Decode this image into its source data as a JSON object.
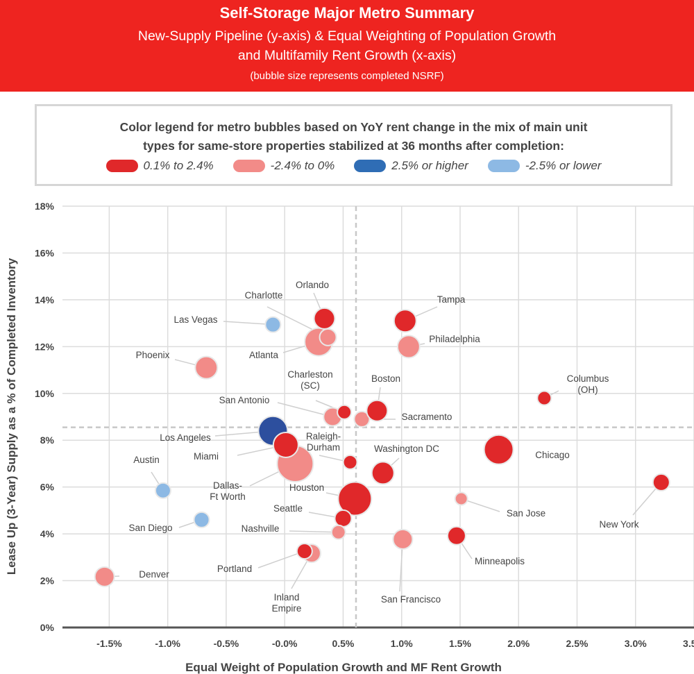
{
  "header": {
    "title": "Self-Storage Major Metro Summary",
    "subtitle_line1": "New-Supply Pipeline (y-axis) & Equal Weighting of Population Growth",
    "subtitle_line2": "and Multifamily Rent Growth (x-axis)",
    "note": "(bubble size represents completed NSRF)"
  },
  "legend": {
    "title_line1": "Color legend for metro bubbles based on YoY rent change in the mix of main unit",
    "title_line2": "types for same-store properties stabilized at 36 months after completion:",
    "items": [
      {
        "label": "0.1% to 2.4%",
        "color": "#e0282a"
      },
      {
        "label": "-2.4% to 0%",
        "color": "#f28b88"
      },
      {
        "label": "2.5% or higher",
        "color": "#2f6db5"
      },
      {
        "label": "-2.5% or lower",
        "color": "#8db9e4"
      }
    ]
  },
  "chart_data": {
    "type": "scatter",
    "xlabel": "Equal Weight of Population Growth and MF Rent Growth",
    "ylabel": "Lease Up (3-Year) Supply as a % of Completed Inventory",
    "xlim": [
      -1.9,
      3.5
    ],
    "ylim": [
      0,
      18
    ],
    "xticks": [
      "-1.5%",
      "-1.0%",
      "-0.5%",
      "-0.0%",
      "0.5%",
      "1.0%",
      "1.5%",
      "2.0%",
      "2.5%",
      "3.0%",
      "3.5%"
    ],
    "xtick_values": [
      -1.5,
      -1.0,
      -0.5,
      0,
      0.5,
      1.0,
      1.5,
      2.0,
      2.5,
      3.0,
      3.5
    ],
    "yticks": [
      "0%",
      "2%",
      "4%",
      "6%",
      "8%",
      "10%",
      "12%",
      "14%",
      "16%",
      "18%"
    ],
    "ytick_values": [
      0,
      2,
      4,
      6,
      8,
      10,
      12,
      14,
      16,
      18
    ],
    "grid": true,
    "reference_lines": {
      "x": 0.61,
      "y": 8.55
    },
    "points": [
      {
        "name": "Las Vegas",
        "x": -0.1,
        "y": 12.94,
        "size": 11,
        "category": "-2.5% or lower"
      },
      {
        "name": "Atlanta",
        "x": 0.29,
        "y": 12.2,
        "size": 20,
        "category": "-2.4% to 0%"
      },
      {
        "name": "Orlando",
        "x": 0.34,
        "y": 13.2,
        "size": 15,
        "category": "0.1% to 2.4%"
      },
      {
        "name": "Charlotte",
        "x": 0.37,
        "y": 12.4,
        "size": 12,
        "category": "-2.4% to 0%"
      },
      {
        "name": "Tampa",
        "x": 1.03,
        "y": 13.1,
        "size": 16,
        "category": "0.1% to 2.4%"
      },
      {
        "name": "Philadelphia",
        "x": 1.06,
        "y": 12.0,
        "size": 16,
        "category": "-2.4% to 0%"
      },
      {
        "name": "Phoenix",
        "x": -0.67,
        "y": 11.1,
        "size": 16,
        "category": "-2.4% to 0%"
      },
      {
        "name": "Columbus (OH)",
        "x": 2.22,
        "y": 9.8,
        "size": 10,
        "category": "0.1% to 2.4%"
      },
      {
        "name": "San Antonio",
        "x": 0.41,
        "y": 9.0,
        "size": 13,
        "category": "-2.4% to 0%"
      },
      {
        "name": "Charleston (SC)",
        "x": 0.51,
        "y": 9.2,
        "size": 10,
        "category": "0.1% to 2.4%"
      },
      {
        "name": "Sacramento",
        "x": 0.66,
        "y": 8.9,
        "size": 11,
        "category": "-2.4% to 0%"
      },
      {
        "name": "Boston",
        "x": 0.79,
        "y": 9.26,
        "size": 15,
        "category": "0.1% to 2.4%"
      },
      {
        "name": "Los Angeles",
        "x": -0.1,
        "y": 8.4,
        "size": 21,
        "category": "2.5% or higher"
      },
      {
        "name": "Dallas-Ft Worth",
        "x": 0.09,
        "y": 7.0,
        "size": 26,
        "category": "-2.4% to 0%"
      },
      {
        "name": "Miami",
        "x": 0.01,
        "y": 7.8,
        "size": 18,
        "category": "0.1% to 2.4%"
      },
      {
        "name": "Raleigh-Durham",
        "x": 0.56,
        "y": 7.06,
        "size": 10,
        "category": "0.1% to 2.4%"
      },
      {
        "name": "Washington DC",
        "x": 0.84,
        "y": 6.6,
        "size": 16,
        "category": "0.1% to 2.4%"
      },
      {
        "name": "Chicago",
        "x": 1.83,
        "y": 7.6,
        "size": 21,
        "category": "0.1% to 2.4%"
      },
      {
        "name": "New York",
        "x": 3.22,
        "y": 6.2,
        "size": 12,
        "category": "0.1% to 2.4%"
      },
      {
        "name": "Austin",
        "x": -1.04,
        "y": 5.85,
        "size": 11,
        "category": "-2.5% or lower"
      },
      {
        "name": "Houston",
        "x": 0.6,
        "y": 5.5,
        "size": 24,
        "category": "0.1% to 2.4%"
      },
      {
        "name": "San Jose",
        "x": 1.51,
        "y": 5.5,
        "size": 9,
        "category": "-2.4% to 0%"
      },
      {
        "name": "San Diego",
        "x": -0.71,
        "y": 4.6,
        "size": 11,
        "category": "-2.5% or lower"
      },
      {
        "name": "Seattle",
        "x": 0.5,
        "y": 4.66,
        "size": 12,
        "category": "0.1% to 2.4%"
      },
      {
        "name": "Nashville",
        "x": 0.46,
        "y": 4.07,
        "size": 10,
        "category": "-2.4% to 0%"
      },
      {
        "name": "San Francisco",
        "x": 1.01,
        "y": 3.77,
        "size": 14,
        "category": "-2.4% to 0%"
      },
      {
        "name": "Minneapolis",
        "x": 1.47,
        "y": 3.92,
        "size": 13,
        "category": "0.1% to 2.4%"
      },
      {
        "name": "Inland Empire",
        "x": 0.23,
        "y": 3.17,
        "size": 13,
        "category": "-2.4% to 0%"
      },
      {
        "name": "Portland",
        "x": 0.17,
        "y": 3.26,
        "size": 11,
        "category": "0.1% to 2.4%"
      },
      {
        "name": "Denver",
        "x": -1.54,
        "y": 2.17,
        "size": 14,
        "category": "-2.4% to 0%"
      }
    ]
  }
}
